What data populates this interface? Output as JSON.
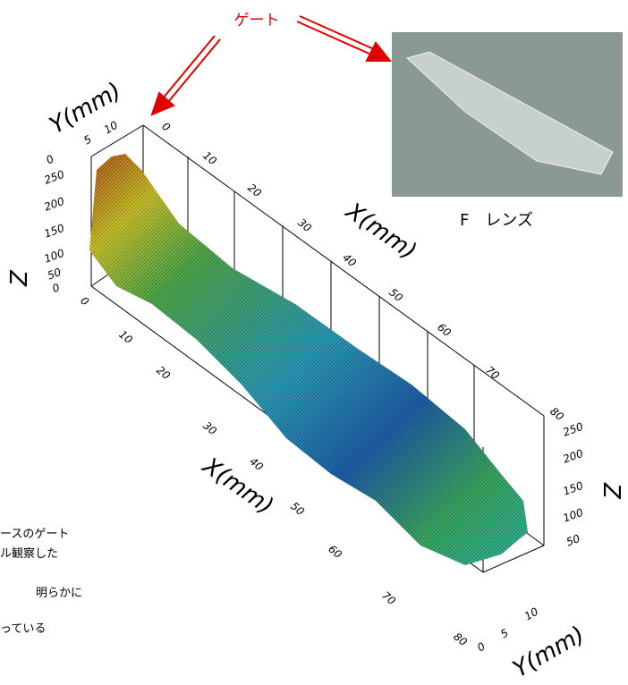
{
  "gate_label": "ゲート",
  "photo_caption": "F　レンズ",
  "notes": [
    "ースのゲート",
    "ル観察した",
    "明らかに",
    "っている"
  ],
  "axis_labels": {
    "y_top": "Y(mm)",
    "x_top": "X(mm)",
    "z_left": "Z",
    "x_bottom": "X(mm)",
    "z_right": "Z",
    "y_bottom": "Y(mm)"
  },
  "x_ticks_top": [
    0,
    10,
    20,
    30,
    40,
    50,
    60,
    70,
    80
  ],
  "x_ticks_bottom": [
    0,
    10,
    20,
    30,
    40,
    50,
    60,
    70,
    80
  ],
  "z_ticks_left": [
    250,
    200,
    150,
    100,
    50,
    0
  ],
  "z_ticks_right": [
    250,
    200,
    150,
    100,
    50
  ],
  "y_ticks_top": [
    0,
    5,
    10
  ],
  "y_ticks_bottom": [
    0,
    5,
    10
  ]
}
